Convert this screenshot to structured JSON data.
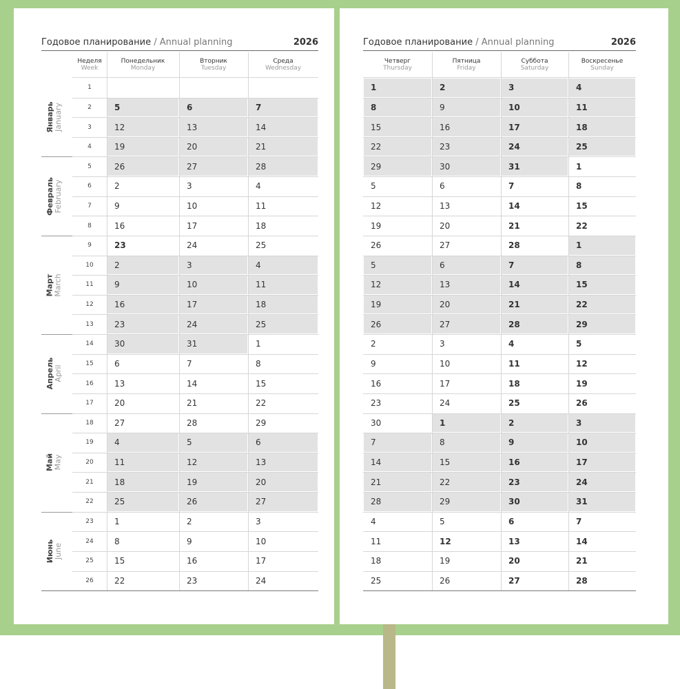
{
  "left": {
    "header": {
      "title_ru": "Годовое планирование",
      "separator": "/",
      "title_en": "Annual planning",
      "year": "2026"
    },
    "columns": [
      {
        "ru": "Неделя",
        "en": "Week"
      },
      {
        "ru": "Понедельник",
        "en": "Monday"
      },
      {
        "ru": "Вторник",
        "en": "Tuesday"
      },
      {
        "ru": "Среда",
        "en": "Wednesday"
      }
    ],
    "months": [
      {
        "ru": "Январь",
        "en": "January"
      },
      {
        "ru": "Февраль",
        "en": "February"
      },
      {
        "ru": "Март",
        "en": "March"
      },
      {
        "ru": "Апрель",
        "en": "April"
      },
      {
        "ru": "Май",
        "en": "May"
      },
      {
        "ru": "Июнь",
        "en": "June"
      }
    ],
    "rows": [
      [
        1,
        null,
        null,
        null
      ],
      [
        2,
        5,
        6,
        7
      ],
      [
        3,
        12,
        13,
        14
      ],
      [
        4,
        19,
        20,
        21
      ],
      [
        5,
        26,
        27,
        28
      ],
      [
        6,
        2,
        3,
        4
      ],
      [
        7,
        9,
        10,
        11
      ],
      [
        8,
        16,
        17,
        18
      ],
      [
        9,
        23,
        24,
        25
      ],
      [
        10,
        2,
        3,
        4
      ],
      [
        11,
        9,
        10,
        11
      ],
      [
        12,
        16,
        17,
        18
      ],
      [
        13,
        23,
        24,
        25
      ],
      [
        14,
        30,
        31,
        1
      ],
      [
        15,
        6,
        7,
        8
      ],
      [
        16,
        13,
        14,
        15
      ],
      [
        17,
        20,
        21,
        22
      ],
      [
        18,
        27,
        28,
        29
      ],
      [
        19,
        4,
        5,
        6
      ],
      [
        20,
        11,
        12,
        13
      ],
      [
        21,
        18,
        19,
        20
      ],
      [
        22,
        25,
        26,
        27
      ],
      [
        23,
        1,
        2,
        3
      ],
      [
        24,
        8,
        9,
        10
      ],
      [
        25,
        15,
        16,
        17
      ],
      [
        26,
        22,
        23,
        24
      ]
    ]
  },
  "right": {
    "header": {
      "title_ru": "Годовое планирование",
      "separator": "/",
      "title_en": "Annual planning",
      "year": "2026"
    },
    "columns": [
      {
        "ru": "Четверг",
        "en": "Thursday"
      },
      {
        "ru": "Пятница",
        "en": "Friday"
      },
      {
        "ru": "Суббота",
        "en": "Saturday"
      },
      {
        "ru": "Воскресенье",
        "en": "Sunday"
      }
    ],
    "rows": [
      [
        1,
        2,
        3,
        4
      ],
      [
        8,
        9,
        10,
        11
      ],
      [
        15,
        16,
        17,
        18
      ],
      [
        22,
        23,
        24,
        25
      ],
      [
        29,
        30,
        31,
        1
      ],
      [
        5,
        6,
        7,
        8
      ],
      [
        12,
        13,
        14,
        15
      ],
      [
        19,
        20,
        21,
        22
      ],
      [
        26,
        27,
        28,
        1
      ],
      [
        5,
        6,
        7,
        8
      ],
      [
        12,
        13,
        14,
        15
      ],
      [
        19,
        20,
        21,
        22
      ],
      [
        26,
        27,
        28,
        29
      ],
      [
        2,
        3,
        4,
        5
      ],
      [
        9,
        10,
        11,
        12
      ],
      [
        16,
        17,
        18,
        19
      ],
      [
        23,
        24,
        25,
        26
      ],
      [
        30,
        1,
        2,
        3
      ],
      [
        7,
        8,
        9,
        10
      ],
      [
        14,
        15,
        16,
        17
      ],
      [
        21,
        22,
        23,
        24
      ],
      [
        28,
        29,
        30,
        31
      ],
      [
        4,
        5,
        6,
        7
      ],
      [
        11,
        12,
        13,
        14
      ],
      [
        18,
        19,
        20,
        21
      ],
      [
        25,
        26,
        27,
        28
      ]
    ]
  }
}
